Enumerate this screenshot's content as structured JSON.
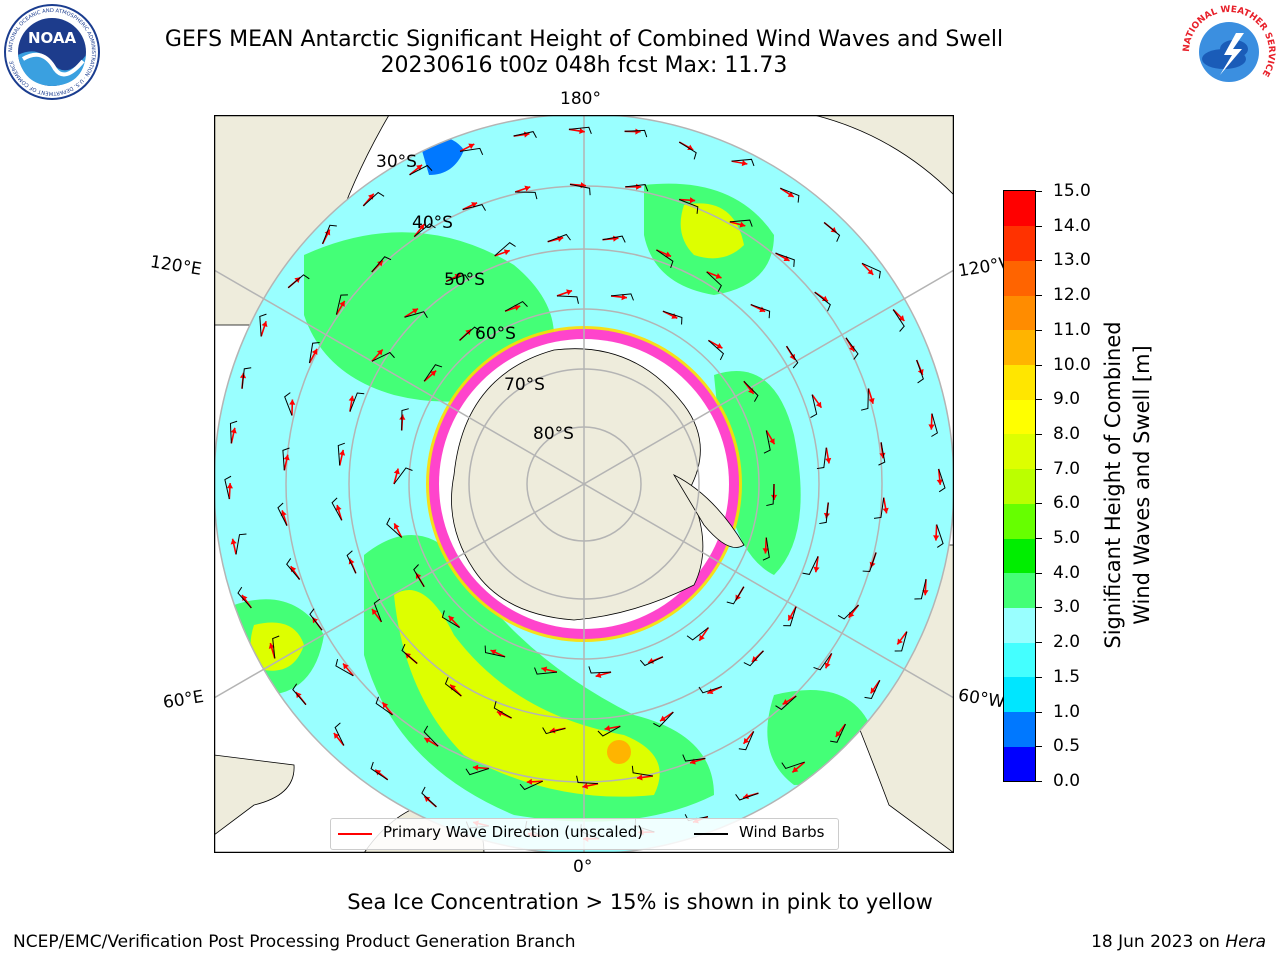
{
  "header": {
    "title_line1": "GEFS MEAN Antarctic Significant Height of Combined Wind Waves and Swell",
    "title_line2": "20230616 t00z 048h fcst   Max: 11.73"
  },
  "logos": {
    "noaa": {
      "wordmark": "NOAA",
      "ring_text": "NATIONAL OCEANIC AND ATMOSPHERIC ADMINISTRATION · U.S. DEPARTMENT OF COMMERCE"
    },
    "nws": {
      "ring_text": "NATIONAL WEATHER SERVICE"
    }
  },
  "map": {
    "projection": "south-polar-stereographic",
    "longitude_labels": {
      "top": "180°",
      "bottom": "0°",
      "upper_left": "120°E",
      "upper_right": "120°W",
      "lower_left": "60°E",
      "lower_right": "60°W"
    },
    "latitude_labels": [
      "30°S",
      "40°S",
      "50°S",
      "60°S",
      "70°S",
      "80°S"
    ],
    "colors": {
      "land": "#eeecdc",
      "graticule": "#b4b4b4",
      "wave_direction": "#ff0000",
      "wind_barb": "#000000",
      "sea_ice": "#ff44cc",
      "sea_ice_edge": "#ffdd00",
      "antarctica": "#ffffff"
    },
    "legend": {
      "wave_direction": "Primary Wave Direction (unscaled)",
      "wind_barbs": "Wind Barbs"
    }
  },
  "colorbar": {
    "label_line1": "Significant Height of Combined",
    "label_line2": "Wind Waves and Swell [m]",
    "ticks": [
      "0.0",
      "0.5",
      "1.0",
      "1.5",
      "2.0",
      "3.0",
      "4.0",
      "5.0",
      "6.0",
      "7.0",
      "8.0",
      "9.0",
      "10.0",
      "11.0",
      "12.0",
      "13.0",
      "14.0",
      "15.0"
    ],
    "colors": [
      "#0000ff",
      "#0078ff",
      "#00e6ff",
      "#44ffff",
      "#99ffff",
      "#44ff77",
      "#00ee00",
      "#66ff00",
      "#bbff00",
      "#ddff00",
      "#ffff00",
      "#ffe600",
      "#ffb400",
      "#ff8c00",
      "#ff6400",
      "#ff3200",
      "#ff0000"
    ]
  },
  "footer": {
    "note": "Sea Ice Concentration > 15% is shown in pink to yellow",
    "left": "NCEP/EMC/Verification Post Processing Product Generation Branch",
    "right_prefix": "18 Jun 2023 on ",
    "right_host": "Hera"
  }
}
